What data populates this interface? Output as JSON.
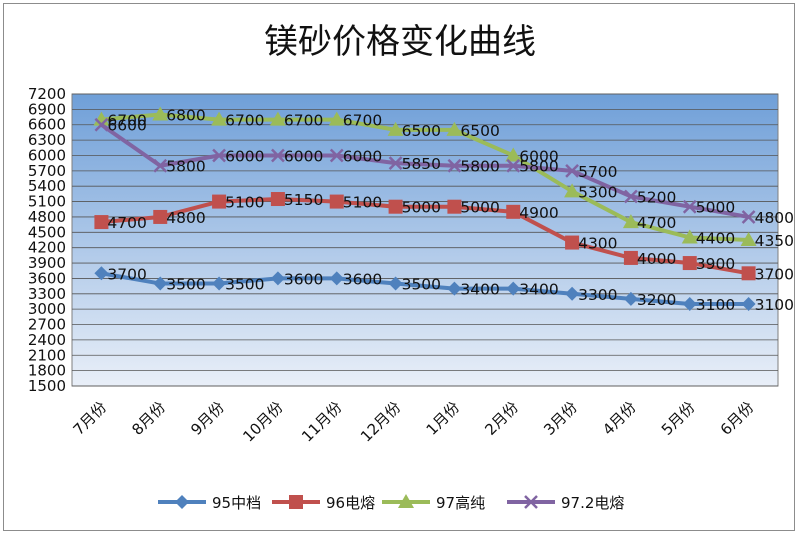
{
  "chart_data": {
    "type": "line",
    "title": "镁砂价格变化曲线",
    "categories": [
      "7月份",
      "8月份",
      "9月份",
      "10月份",
      "11月份",
      "12月份",
      "1月份",
      "2月份",
      "3月份",
      "4月份",
      "5月份",
      "6月份"
    ],
    "ylim": [
      1500,
      7200
    ],
    "yticks": [
      1500,
      1800,
      2100,
      2400,
      2700,
      3000,
      3300,
      3600,
      3900,
      4200,
      4500,
      4800,
      5100,
      5400,
      5700,
      6000,
      6300,
      6600,
      6900,
      7200
    ],
    "grid": true,
    "legend_position": "bottom",
    "series": [
      {
        "name": "95中档",
        "color": "#4f81bd",
        "marker": "diamond",
        "values": [
          3700,
          3500,
          3500,
          3600,
          3600,
          3500,
          3400,
          3400,
          3300,
          3200,
          3100,
          3100
        ]
      },
      {
        "name": "96电熔",
        "color": "#c0504d",
        "marker": "square",
        "values": [
          4700,
          4800,
          5100,
          5150,
          5100,
          5000,
          5000,
          4900,
          4300,
          4000,
          3900,
          3700
        ]
      },
      {
        "name": "97高纯",
        "color": "#9bbb59",
        "marker": "triangle",
        "values": [
          6700,
          6800,
          6700,
          6700,
          6700,
          6500,
          6500,
          6000,
          5300,
          4700,
          4400,
          4350
        ]
      },
      {
        "name": "97.2电熔",
        "color": "#8064a2",
        "marker": "x",
        "values": [
          6600,
          5800,
          6000,
          6000,
          6000,
          5850,
          5800,
          5800,
          5700,
          5200,
          5000,
          4800
        ]
      }
    ]
  }
}
